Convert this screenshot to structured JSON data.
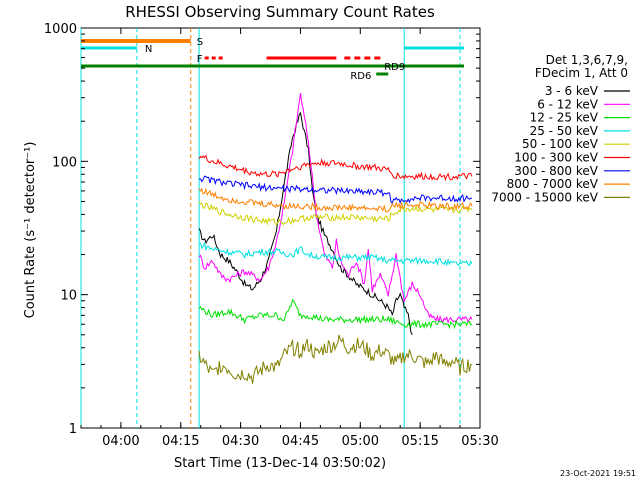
{
  "chart_data": {
    "type": "line",
    "title": "RHESSI Observing Summary Count Rates",
    "xlabel": "Start Time (13-Dec-14 03:50:02)",
    "ylabel": "Count Rate (s⁻¹ detector⁻¹)",
    "y_scale": "log",
    "ylim": [
      1,
      1000
    ],
    "xlim_minutes_from_start": [
      0,
      100
    ],
    "x_ticks": [
      {
        "t": 10,
        "label": "04:00"
      },
      {
        "t": 25,
        "label": "04:15"
      },
      {
        "t": 40,
        "label": "04:30"
      },
      {
        "t": 55,
        "label": "04:45"
      },
      {
        "t": 70,
        "label": "05:00"
      },
      {
        "t": 85,
        "label": "05:15"
      },
      {
        "t": 100,
        "label": "05:30"
      }
    ],
    "y_ticks": [
      {
        "v": 1,
        "label": "1"
      },
      {
        "v": 10,
        "label": "10"
      },
      {
        "v": 100,
        "label": "100"
      },
      {
        "v": 1000,
        "label": "1000"
      }
    ],
    "legend_header": [
      "Det 1,3,6,7,9,",
      "FDecim 1, Att 0"
    ],
    "legend_placement": "right",
    "series": [
      {
        "name": "3 - 6 keV",
        "color": "#000000",
        "x": [
          29.6,
          31,
          33,
          35,
          37,
          39,
          41,
          43,
          45,
          47,
          49,
          51,
          53,
          55,
          57,
          58,
          59,
          61,
          63,
          65,
          67,
          69,
          71,
          73,
          75,
          77,
          78,
          79,
          80,
          81,
          82,
          83
        ],
        "y": [
          30,
          25,
          28,
          20,
          18,
          15,
          12,
          11,
          13,
          18,
          30,
          70,
          150,
          230,
          120,
          60,
          40,
          28,
          22,
          16,
          14,
          12,
          11,
          10,
          9,
          8,
          7,
          9,
          10,
          8,
          7,
          5
        ]
      },
      {
        "name": "6 - 12 keV",
        "color": "#ff00ff",
        "x": [
          29.6,
          31,
          33,
          35,
          37,
          39,
          41,
          43,
          45,
          47,
          49,
          51,
          53,
          55,
          57,
          59,
          61,
          63,
          64,
          65,
          67,
          69,
          71,
          72,
          73,
          75,
          77,
          79,
          81,
          83,
          85,
          87,
          89,
          91,
          93,
          95,
          97,
          98
        ],
        "y": [
          20,
          16,
          18,
          14,
          13,
          14,
          15,
          14,
          13,
          16,
          25,
          50,
          120,
          320,
          140,
          40,
          20,
          16,
          25,
          18,
          14,
          18,
          12,
          22,
          11,
          14,
          10,
          20,
          9,
          12,
          10,
          7,
          6.5,
          6.5,
          6.5,
          6.5,
          6.5,
          6.5
        ]
      },
      {
        "name": "12 - 25 keV",
        "color": "#00e000",
        "x": [
          29.6,
          33,
          37,
          41,
          45,
          49,
          51,
          53,
          55,
          57,
          61,
          65,
          69,
          73,
          77,
          81,
          85,
          89,
          93,
          97,
          98
        ],
        "y": [
          8,
          7,
          7.5,
          6.5,
          7,
          7,
          6.5,
          9,
          7,
          7,
          6.5,
          6.5,
          6.5,
          6.5,
          6.5,
          6,
          6,
          6,
          6,
          6,
          6
        ]
      },
      {
        "name": "25 - 50 keV",
        "color": "#00e0e0",
        "x": [
          29.6,
          33,
          37,
          41,
          45,
          49,
          53,
          55,
          57,
          61,
          65,
          69,
          73,
          77,
          81,
          85,
          89,
          93,
          97,
          98
        ],
        "y": [
          24,
          22,
          21,
          20,
          21,
          21,
          20,
          22,
          20,
          19,
          19,
          19,
          19,
          18,
          18,
          18,
          18,
          17,
          17,
          17
        ]
      },
      {
        "name": "50 - 100 keV",
        "color": "#d0d000",
        "x": [
          29.6,
          33,
          37,
          41,
          45,
          49,
          53,
          57,
          61,
          65,
          69,
          73,
          77,
          79,
          81,
          85,
          89,
          93,
          97,
          98
        ],
        "y": [
          48,
          44,
          40,
          38,
          36,
          35,
          36,
          38,
          38,
          38,
          38,
          37,
          37,
          42,
          44,
          44,
          43,
          43,
          44,
          44
        ]
      },
      {
        "name": "100 - 300 keV",
        "color": "#ff0000",
        "x": [
          29.6,
          33,
          37,
          41,
          45,
          49,
          53,
          57,
          61,
          65,
          69,
          73,
          77,
          78,
          79,
          81,
          85,
          89,
          93,
          97,
          98
        ],
        "y": [
          110,
          100,
          92,
          85,
          80,
          80,
          88,
          95,
          98,
          96,
          92,
          90,
          86,
          80,
          78,
          77,
          77,
          77,
          77,
          77,
          77
        ]
      },
      {
        "name": "300 - 800 keV",
        "color": "#0000ff",
        "x": [
          29.6,
          33,
          37,
          41,
          45,
          49,
          53,
          57,
          61,
          65,
          69,
          73,
          77,
          78,
          81,
          85,
          89,
          93,
          97,
          98
        ],
        "y": [
          75,
          72,
          68,
          66,
          64,
          63,
          62,
          62,
          61,
          60,
          60,
          59,
          58,
          50,
          52,
          53,
          53,
          53,
          53,
          53
        ]
      },
      {
        "name": "800 - 7000 keV",
        "color": "#ff8000",
        "x": [
          29.6,
          33,
          37,
          41,
          45,
          49,
          53,
          57,
          61,
          65,
          69,
          73,
          77,
          79,
          81,
          85,
          89,
          93,
          97,
          98
        ],
        "y": [
          62,
          56,
          52,
          50,
          48,
          47,
          46,
          46,
          45,
          45,
          45,
          44,
          44,
          47,
          47,
          47,
          46,
          46,
          46,
          46
        ]
      },
      {
        "name": "7000 - 15000 keV",
        "color": "#808000",
        "x": [
          29.6,
          31,
          33,
          35,
          37,
          39,
          41,
          43,
          45,
          47,
          49,
          51,
          53,
          55,
          57,
          59,
          61,
          63,
          65,
          67,
          69,
          71,
          73,
          75,
          77,
          79,
          81,
          83,
          85,
          87,
          89,
          91,
          93,
          95,
          97,
          98
        ],
        "y": [
          3.5,
          3,
          2.5,
          3,
          2.8,
          2.5,
          2.6,
          2.4,
          2.7,
          3.0,
          2.8,
          3.5,
          4,
          3.8,
          4.2,
          3.5,
          4,
          4.2,
          4.5,
          4,
          4.2,
          4,
          3.5,
          3.8,
          3.5,
          3,
          3.5,
          3.5,
          3.2,
          3,
          3.5,
          3,
          3.2,
          2.8,
          3,
          3
        ]
      }
    ],
    "annotations": [
      {
        "text": "N",
        "color": "#00e0e0"
      },
      {
        "text": "S",
        "color": "#ff8000"
      },
      {
        "text": "F",
        "color": "#ff0000"
      },
      {
        "text": "RD6",
        "color": "#008000"
      },
      {
        "text": "RD9",
        "color": "#008000"
      }
    ],
    "footer": "23-Oct-2021 19:51"
  }
}
